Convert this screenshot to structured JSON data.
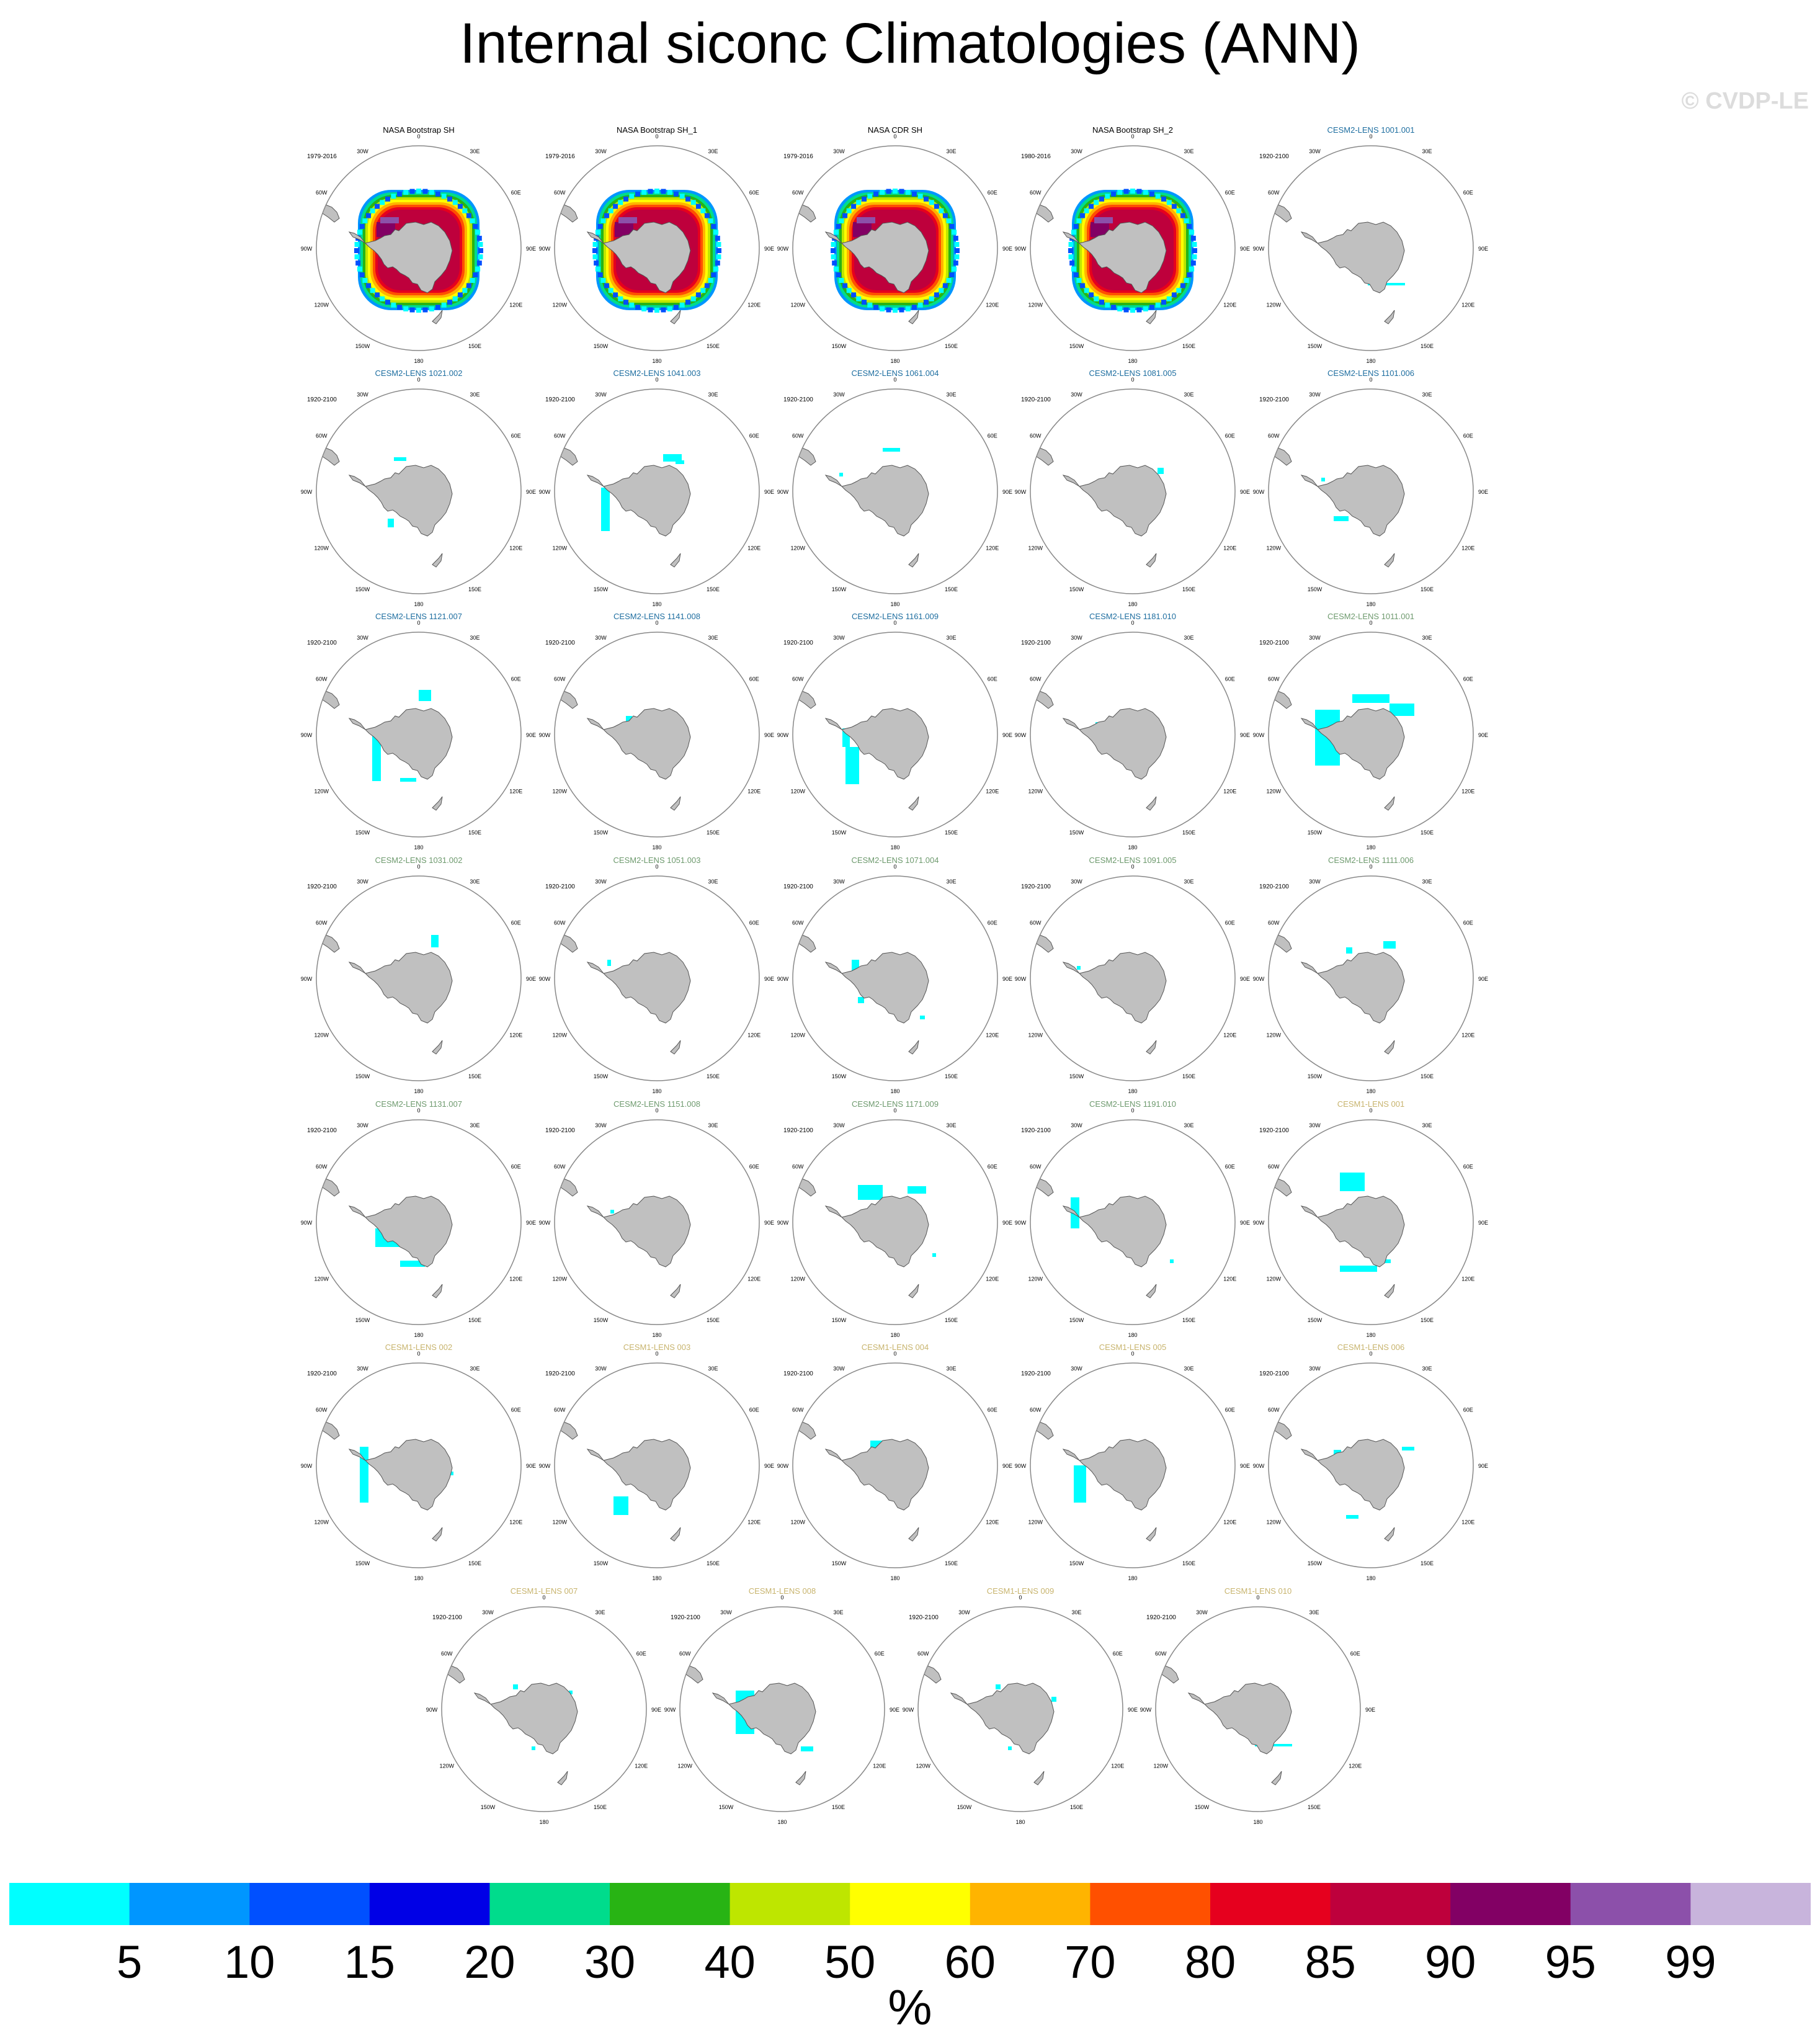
{
  "title": "Internal siconc Climatologies (ANN)",
  "watermark": "© CVDP-LE",
  "units": "%",
  "colors": {
    "land": "#c0c0c0",
    "coast": "#555555",
    "circle": "#888888",
    "obs_title": "#000000",
    "cesm2_a": "#1e6ea0",
    "cesm2_b": "#6e9a6e",
    "cesm1": "#c8b46e"
  },
  "chart_data": {
    "type": "heatmap",
    "projection": "south polar stereographic",
    "variable": "siconc",
    "season": "ANN",
    "lon_labels": [
      "0",
      "30E",
      "60E",
      "90E",
      "120E",
      "150E",
      "180",
      "150W",
      "120W",
      "90W",
      "60W",
      "30W"
    ],
    "colorbar": {
      "levels": [
        "5",
        "10",
        "15",
        "20",
        "30",
        "40",
        "50",
        "60",
        "70",
        "80",
        "85",
        "90",
        "95",
        "99"
      ],
      "colors": [
        "#00ffff",
        "#0096ff",
        "#0050ff",
        "#0000e6",
        "#00dc8c",
        "#28b414",
        "#bee600",
        "#ffff00",
        "#ffb400",
        "#ff5000",
        "#e6001e",
        "#be003c",
        "#820064",
        "#8c50aa",
        "#c8b4dc"
      ]
    },
    "panels": [
      {
        "name": "NASA Bootstrap SH",
        "period": "1979-2016",
        "group": "obs",
        "ice": "full"
      },
      {
        "name": "NASA Bootstrap SH_1",
        "period": "1979-2016",
        "group": "obs",
        "ice": "full"
      },
      {
        "name": "NASA CDR SH",
        "period": "1979-2016",
        "group": "obs",
        "ice": "full"
      },
      {
        "name": "NASA Bootstrap SH_2",
        "period": "1980-2016",
        "group": "obs",
        "ice": "full"
      },
      {
        "name": "CESM2-LENS 1001.001",
        "period": "1920-2100",
        "group": "cesm2_a",
        "ice": "sparse"
      },
      {
        "name": "CESM2-LENS 1021.002",
        "period": "1920-2100",
        "group": "cesm2_a",
        "ice": "sparse"
      },
      {
        "name": "CESM2-LENS 1041.003",
        "period": "1920-2100",
        "group": "cesm2_a",
        "ice": "sparse"
      },
      {
        "name": "CESM2-LENS 1061.004",
        "period": "1920-2100",
        "group": "cesm2_a",
        "ice": "sparse"
      },
      {
        "name": "CESM2-LENS 1081.005",
        "period": "1920-2100",
        "group": "cesm2_a",
        "ice": "sparse"
      },
      {
        "name": "CESM2-LENS 1101.006",
        "period": "1920-2100",
        "group": "cesm2_a",
        "ice": "sparse"
      },
      {
        "name": "CESM2-LENS 1121.007",
        "period": "1920-2100",
        "group": "cesm2_a",
        "ice": "sparse"
      },
      {
        "name": "CESM2-LENS 1141.008",
        "period": "1920-2100",
        "group": "cesm2_a",
        "ice": "sparse"
      },
      {
        "name": "CESM2-LENS 1161.009",
        "period": "1920-2100",
        "group": "cesm2_a",
        "ice": "sparse"
      },
      {
        "name": "CESM2-LENS 1181.010",
        "period": "1920-2100",
        "group": "cesm2_a",
        "ice": "sparse"
      },
      {
        "name": "CESM2-LENS 1011.001",
        "period": "1920-2100",
        "group": "cesm2_b",
        "ice": "sparse"
      },
      {
        "name": "CESM2-LENS 1031.002",
        "period": "1920-2100",
        "group": "cesm2_b",
        "ice": "sparse"
      },
      {
        "name": "CESM2-LENS 1051.003",
        "period": "1920-2100",
        "group": "cesm2_b",
        "ice": "sparse"
      },
      {
        "name": "CESM2-LENS 1071.004",
        "period": "1920-2100",
        "group": "cesm2_b",
        "ice": "sparse"
      },
      {
        "name": "CESM2-LENS 1091.005",
        "period": "1920-2100",
        "group": "cesm2_b",
        "ice": "sparse"
      },
      {
        "name": "CESM2-LENS 1111.006",
        "period": "1920-2100",
        "group": "cesm2_b",
        "ice": "sparse"
      },
      {
        "name": "CESM2-LENS 1131.007",
        "period": "1920-2100",
        "group": "cesm2_b",
        "ice": "sparse"
      },
      {
        "name": "CESM2-LENS 1151.008",
        "period": "1920-2100",
        "group": "cesm2_b",
        "ice": "sparse"
      },
      {
        "name": "CESM2-LENS 1171.009",
        "period": "1920-2100",
        "group": "cesm2_b",
        "ice": "sparse"
      },
      {
        "name": "CESM2-LENS 1191.010",
        "period": "1920-2100",
        "group": "cesm2_b",
        "ice": "sparse"
      },
      {
        "name": "CESM1-LENS 001",
        "period": "1920-2100",
        "group": "cesm1",
        "ice": "sparse"
      },
      {
        "name": "CESM1-LENS 002",
        "period": "1920-2100",
        "group": "cesm1",
        "ice": "sparse"
      },
      {
        "name": "CESM1-LENS 003",
        "period": "1920-2100",
        "group": "cesm1",
        "ice": "sparse"
      },
      {
        "name": "CESM1-LENS 004",
        "period": "1920-2100",
        "group": "cesm1",
        "ice": "sparse"
      },
      {
        "name": "CESM1-LENS 005",
        "period": "1920-2100",
        "group": "cesm1",
        "ice": "sparse"
      },
      {
        "name": "CESM1-LENS 006",
        "period": "1920-2100",
        "group": "cesm1",
        "ice": "sparse"
      },
      {
        "name": "CESM1-LENS 007",
        "period": "1920-2100",
        "group": "cesm1",
        "ice": "sparse"
      },
      {
        "name": "CESM1-LENS 008",
        "period": "1920-2100",
        "group": "cesm1",
        "ice": "sparse"
      },
      {
        "name": "CESM1-LENS 009",
        "period": "1920-2100",
        "group": "cesm1",
        "ice": "sparse"
      },
      {
        "name": "CESM1-LENS 010",
        "period": "1920-2100",
        "group": "cesm1",
        "ice": "sparse"
      }
    ]
  }
}
